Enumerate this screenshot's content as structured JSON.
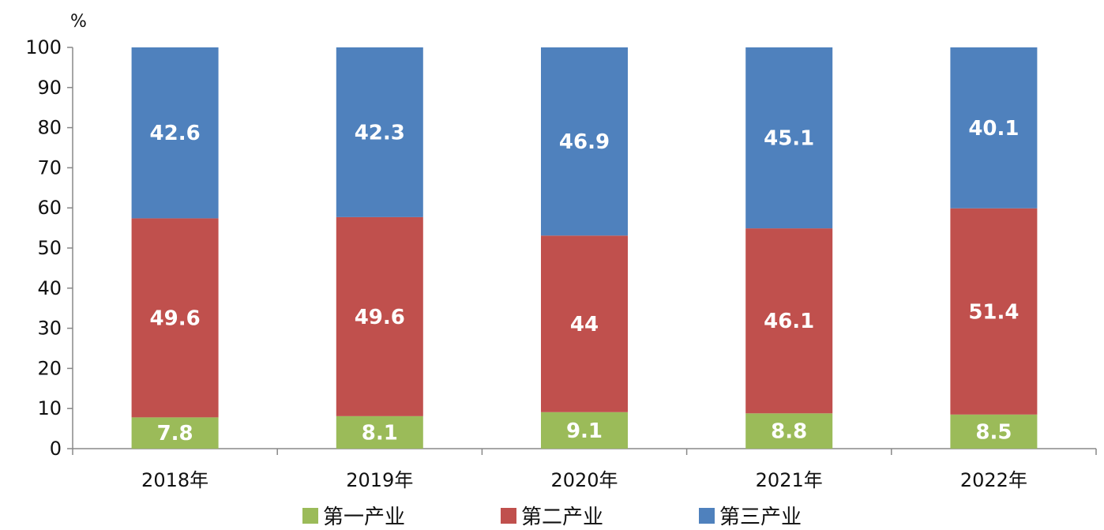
{
  "chart_data": {
    "type": "bar",
    "stacked": true,
    "unit_label": "%",
    "ylim": [
      0,
      100
    ],
    "yticks": [
      0,
      10,
      20,
      30,
      40,
      50,
      60,
      70,
      80,
      90,
      100
    ],
    "categories": [
      "2018年",
      "2019年",
      "2020年",
      "2021年",
      "2022年"
    ],
    "series": [
      {
        "name": "第一产业",
        "color": "#9bbb59",
        "values": [
          7.8,
          8.1,
          9.1,
          8.8,
          8.5
        ]
      },
      {
        "name": "第二产业",
        "color": "#c0504d",
        "values": [
          49.6,
          49.6,
          44,
          46.1,
          51.4
        ]
      },
      {
        "name": "第三产业",
        "color": "#4f81bd",
        "values": [
          42.6,
          42.3,
          46.9,
          45.1,
          40.1
        ]
      }
    ],
    "grid": false,
    "legend_position": "bottom"
  }
}
